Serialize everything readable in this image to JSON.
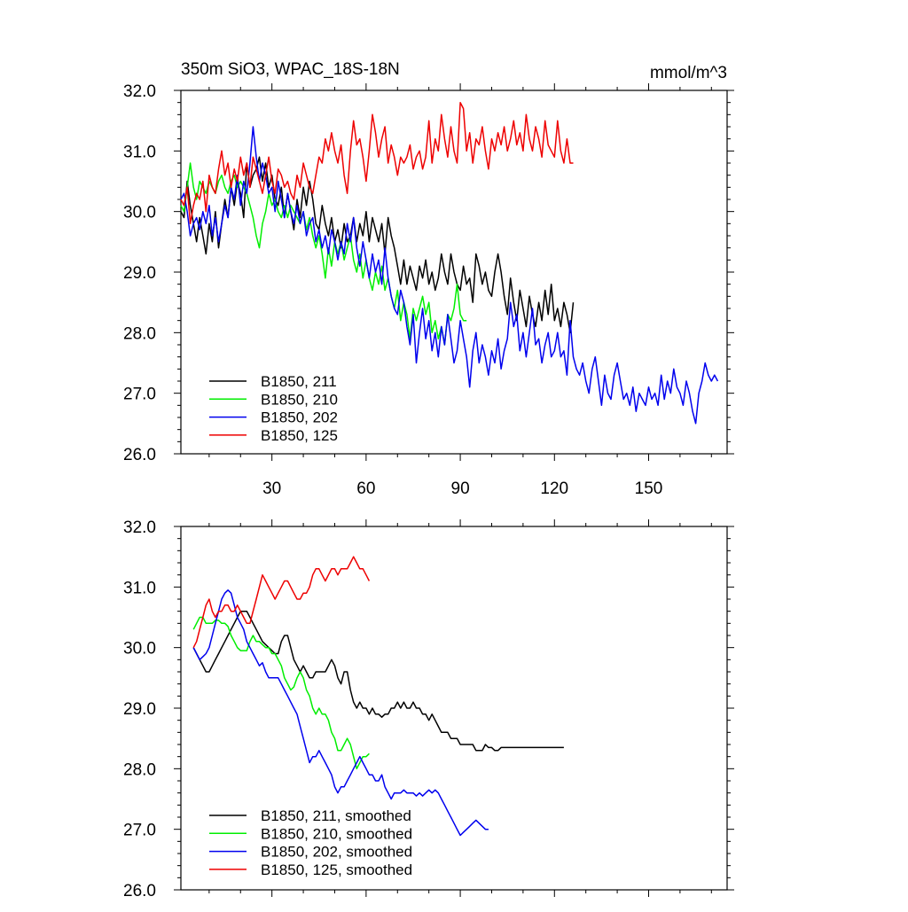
{
  "chart_data": [
    {
      "type": "line",
      "title": "350m SiO3, WPAC_18S-18N",
      "units": "mmol/m^3",
      "xlabel": "",
      "ylabel": "",
      "xlim": [
        1,
        175
      ],
      "ylim": [
        26.0,
        32.0
      ],
      "xticks": [
        30,
        60,
        90,
        120,
        150
      ],
      "xtick_labels": [
        "30",
        "60",
        "90",
        "120",
        "150"
      ],
      "yticks": [
        26.0,
        27.0,
        28.0,
        29.0,
        30.0,
        31.0,
        32.0
      ],
      "ytick_labels": [
        "26.0",
        "27.0",
        "28.0",
        "29.0",
        "30.0",
        "31.0",
        "32.0"
      ],
      "legend_position": "bottom-left",
      "series": [
        {
          "name": "B1850, 211",
          "color": "#000000",
          "start": 1,
          "values": [
            30.0,
            29.9,
            30.5,
            30.1,
            29.8,
            29.5,
            29.9,
            29.6,
            29.3,
            29.8,
            29.5,
            30.0,
            29.4,
            29.8,
            30.2,
            29.9,
            30.4,
            30.1,
            30.5,
            30.3,
            29.9,
            30.8,
            30.4,
            30.6,
            30.7,
            30.9,
            30.5,
            30.8,
            30.4,
            30.6,
            30.2,
            30.1,
            30.4,
            29.9,
            30.3,
            30.0,
            29.7,
            30.2,
            29.9,
            30.4,
            30.1,
            30.5,
            30.2,
            29.8,
            29.7,
            30.1,
            29.8,
            29.6,
            29.9,
            29.5,
            29.7,
            29.4,
            29.8,
            29.5,
            29.6,
            29.9,
            29.5,
            29.8,
            29.6,
            30.0,
            29.5,
            29.9,
            29.7,
            29.5,
            29.8,
            29.3,
            29.9,
            29.6,
            29.4,
            29.1,
            28.8,
            29.2,
            28.8,
            29.1,
            28.9,
            28.7,
            29.1,
            28.9,
            29.2,
            28.8,
            29.0,
            28.7,
            28.9,
            29.3,
            29.0,
            28.8,
            29.3,
            29.0,
            28.8,
            28.7,
            29.1,
            28.8,
            28.9,
            28.5,
            29.3,
            29.1,
            28.8,
            29.0,
            28.7,
            28.6,
            29.0,
            29.3,
            29.0,
            28.6,
            28.3,
            28.9,
            28.5,
            28.2,
            28.7,
            28.4,
            28.1,
            28.6,
            28.3,
            28.1,
            28.5,
            28.2,
            28.7,
            28.3,
            28.8,
            28.2,
            28.4,
            28.1,
            28.5,
            28.3,
            28.0,
            28.5
          ]
        },
        {
          "name": "B1850, 210",
          "color": "#00ee00",
          "start": 1,
          "values": [
            30.1,
            30.0,
            30.4,
            30.8,
            30.4,
            30.2,
            30.5,
            30.4,
            30.3,
            30.5,
            30.4,
            30.3,
            30.5,
            30.6,
            30.4,
            30.3,
            30.5,
            30.6,
            30.4,
            30.5,
            30.4,
            30.3,
            30.1,
            29.9,
            29.6,
            29.4,
            29.8,
            30.0,
            30.3,
            30.1,
            30.2,
            30.0,
            29.9,
            30.1,
            29.9,
            30.1,
            30.0,
            29.9,
            29.8,
            30.0,
            29.7,
            29.9,
            29.6,
            29.4,
            29.6,
            29.3,
            28.9,
            29.4,
            29.1,
            29.5,
            29.3,
            29.5,
            29.2,
            29.4,
            29.6,
            29.2,
            29.0,
            29.3,
            28.9,
            29.2,
            28.9,
            28.7,
            29.0,
            28.8,
            29.1,
            28.7,
            28.9,
            28.6,
            28.4,
            28.7,
            28.2,
            28.5,
            28.3,
            27.9,
            28.4,
            28.2,
            28.4,
            28.6,
            28.3,
            28.5,
            28.0,
            28.2,
            27.9,
            28.1,
            27.8,
            28.3,
            28.2,
            28.4,
            28.8,
            28.3,
            28.2,
            28.2
          ]
        },
        {
          "name": "B1850, 202",
          "color": "#0000ee",
          "start": 1,
          "values": [
            30.2,
            30.3,
            30.0,
            29.6,
            29.8,
            29.9,
            29.7,
            30.0,
            29.8,
            30.1,
            29.6,
            29.9,
            29.5,
            29.8,
            30.1,
            29.9,
            30.4,
            30.2,
            30.6,
            30.1,
            30.5,
            30.3,
            30.8,
            31.4,
            30.9,
            30.5,
            30.8,
            30.6,
            30.3,
            30.4,
            30.0,
            30.5,
            30.2,
            29.9,
            30.3,
            30.0,
            29.8,
            30.1,
            29.8,
            30.0,
            29.6,
            29.8,
            29.9,
            29.5,
            29.7,
            29.4,
            29.6,
            29.3,
            29.7,
            29.5,
            29.2,
            29.5,
            29.3,
            29.8,
            29.5,
            29.9,
            29.4,
            29.1,
            29.5,
            29.2,
            28.9,
            29.3,
            29.0,
            29.2,
            28.8,
            29.4,
            28.9,
            28.6,
            28.4,
            28.3,
            28.7,
            28.5,
            28.1,
            27.8,
            28.3,
            27.5,
            28.0,
            28.4,
            27.9,
            28.2,
            27.7,
            28.0,
            27.6,
            28.1,
            27.8,
            28.3,
            27.9,
            27.5,
            27.7,
            28.2,
            27.9,
            27.6,
            27.1,
            27.7,
            28.0,
            27.5,
            27.8,
            27.6,
            27.3,
            27.7,
            27.5,
            27.9,
            27.4,
            27.7,
            27.9,
            28.5,
            28.1,
            28.3,
            27.7,
            28.0,
            27.6,
            28.0,
            28.4,
            27.8,
            27.9,
            27.5,
            27.8,
            28.0,
            27.6,
            27.7,
            28.0,
            27.6,
            27.7,
            27.3,
            28.2,
            27.6,
            27.4,
            27.3,
            27.5,
            27.2,
            27.0,
            27.4,
            27.6,
            27.2,
            26.8,
            27.3,
            27.0,
            26.9,
            27.3,
            27.5,
            27.2,
            26.9,
            27.0,
            26.8,
            27.1,
            26.7,
            27.0,
            26.9,
            26.8,
            27.1,
            26.9,
            27.0,
            26.8,
            27.3,
            26.9,
            27.2,
            27.0,
            27.4,
            27.1,
            27.0,
            26.8,
            27.2,
            27.0,
            26.7,
            26.5,
            27.0,
            27.2,
            27.5,
            27.3,
            27.2,
            27.3,
            27.2
          ]
        },
        {
          "name": "B1850, 125",
          "color": "#ee0000",
          "start": 1,
          "values": [
            30.2,
            30.1,
            30.4,
            29.8,
            30.1,
            30.3,
            30.2,
            30.5,
            30.0,
            30.6,
            30.4,
            30.3,
            30.7,
            31.0,
            30.6,
            30.8,
            30.4,
            30.7,
            30.5,
            30.9,
            30.6,
            30.8,
            30.4,
            30.9,
            30.7,
            30.5,
            30.3,
            30.6,
            30.9,
            30.5,
            30.3,
            30.7,
            30.6,
            30.4,
            30.5,
            30.3,
            30.2,
            30.6,
            30.4,
            30.8,
            30.6,
            30.4,
            30.3,
            30.6,
            30.9,
            30.8,
            31.2,
            31.0,
            31.3,
            31.0,
            30.8,
            31.1,
            30.6,
            30.3,
            31.0,
            31.5,
            31.1,
            31.2,
            30.9,
            30.5,
            31.0,
            31.6,
            31.3,
            30.9,
            31.2,
            31.4,
            30.8,
            31.1,
            30.9,
            30.6,
            30.9,
            30.8,
            30.9,
            31.1,
            30.7,
            30.9,
            31.0,
            30.7,
            30.9,
            31.5,
            30.8,
            31.2,
            31.0,
            31.6,
            31.2,
            30.9,
            31.4,
            31.0,
            30.8,
            31.8,
            31.7,
            31.0,
            31.3,
            30.8,
            31.2,
            31.1,
            31.4,
            31.0,
            30.7,
            31.2,
            31.0,
            31.3,
            31.1,
            31.4,
            31.0,
            31.2,
            31.5,
            31.1,
            31.3,
            31.0,
            31.6,
            31.2,
            31.0,
            31.4,
            31.2,
            30.9,
            31.5,
            31.1,
            31.0,
            30.9,
            31.5,
            31.0,
            30.8,
            31.2,
            30.8,
            30.8
          ]
        }
      ],
      "legend": [
        "B1850, 211",
        "B1850, 210",
        "B1850, 202",
        "B1850, 125"
      ]
    },
    {
      "type": "line",
      "title": "",
      "xlabel": "",
      "ylabel": "",
      "xlim": [
        1,
        175
      ],
      "ylim": [
        26.0,
        32.0
      ],
      "xticks": [
        30,
        60,
        90,
        120,
        150
      ],
      "yticks": [
        26.0,
        27.0,
        28.0,
        29.0,
        30.0,
        31.0,
        32.0
      ],
      "ytick_labels": [
        "26.0",
        "27.0",
        "28.0",
        "29.0",
        "30.0",
        "31.0",
        "32.0"
      ],
      "legend_position": "bottom-left",
      "series": [
        {
          "name": "B1850, 211, smoothed",
          "color": "#000000",
          "start": 5,
          "values": [
            30.0,
            29.9,
            29.8,
            29.7,
            29.6,
            29.6,
            29.7,
            29.8,
            29.9,
            30.0,
            30.1,
            30.2,
            30.3,
            30.4,
            30.5,
            30.6,
            30.6,
            30.6,
            30.5,
            30.4,
            30.3,
            30.2,
            30.1,
            30.05,
            30.0,
            29.95,
            29.9,
            29.9,
            30.1,
            30.2,
            30.2,
            30.0,
            29.8,
            29.7,
            29.6,
            29.7,
            29.6,
            29.5,
            29.5,
            29.6,
            29.6,
            29.6,
            29.6,
            29.7,
            29.8,
            29.7,
            29.5,
            29.4,
            29.6,
            29.6,
            29.3,
            29.1,
            29.0,
            29.1,
            29.0,
            29.0,
            28.9,
            29.0,
            28.9,
            28.9,
            28.85,
            28.9,
            28.9,
            29.0,
            29.0,
            29.1,
            29.0,
            29.1,
            29.0,
            29.0,
            29.1,
            29.0,
            29.0,
            28.9,
            28.9,
            28.8,
            28.9,
            28.8,
            28.7,
            28.6,
            28.6,
            28.6,
            28.5,
            28.5,
            28.5,
            28.4,
            28.4,
            28.4,
            28.4,
            28.4,
            28.3,
            28.3,
            28.3,
            28.4,
            28.35,
            28.35,
            28.3,
            28.3,
            28.35,
            28.35,
            28.35,
            28.35,
            28.35,
            28.35,
            28.35,
            28.35,
            28.35,
            28.35,
            28.35,
            28.35,
            28.35,
            28.35,
            28.35,
            28.35,
            28.35,
            28.35,
            28.35,
            28.35,
            28.35
          ]
        },
        {
          "name": "B1850, 210, smoothed",
          "color": "#00ee00",
          "start": 5,
          "values": [
            30.3,
            30.4,
            30.5,
            30.5,
            30.4,
            30.4,
            30.4,
            30.45,
            30.45,
            30.4,
            30.4,
            30.35,
            30.2,
            30.1,
            30.0,
            29.95,
            29.95,
            29.95,
            30.1,
            30.2,
            30.1,
            30.1,
            30.05,
            30.0,
            30.0,
            29.9,
            29.9,
            29.8,
            29.7,
            29.5,
            29.4,
            29.3,
            29.35,
            29.5,
            29.6,
            29.5,
            29.3,
            29.2,
            29.0,
            28.9,
            29.0,
            28.9,
            28.9,
            28.8,
            28.6,
            28.5,
            28.3,
            28.3,
            28.4,
            28.5,
            28.4,
            28.2,
            28.0,
            28.1,
            28.2,
            28.2,
            28.25
          ]
        },
        {
          "name": "B1850, 202, smoothed",
          "color": "#0000ee",
          "start": 5,
          "values": [
            30.0,
            29.9,
            29.8,
            29.85,
            29.9,
            30.0,
            30.2,
            30.4,
            30.6,
            30.8,
            30.9,
            30.95,
            30.9,
            30.7,
            30.5,
            30.4,
            30.3,
            30.1,
            30.0,
            29.9,
            29.8,
            29.7,
            29.75,
            29.6,
            29.5,
            29.5,
            29.5,
            29.5,
            29.4,
            29.3,
            29.2,
            29.1,
            29.0,
            28.9,
            28.7,
            28.5,
            28.3,
            28.1,
            28.2,
            28.2,
            28.3,
            28.2,
            28.1,
            28.0,
            27.9,
            27.7,
            27.6,
            27.7,
            27.7,
            27.8,
            27.9,
            28.0,
            28.1,
            28.2,
            28.1,
            28.0,
            27.9,
            27.9,
            27.8,
            27.8,
            27.9,
            27.7,
            27.6,
            27.5,
            27.6,
            27.6,
            27.6,
            27.65,
            27.6,
            27.6,
            27.6,
            27.55,
            27.6,
            27.55,
            27.6,
            27.65,
            27.6,
            27.65,
            27.6,
            27.5,
            27.4,
            27.3,
            27.2,
            27.1,
            27.0,
            26.9,
            26.95,
            27.0,
            27.05,
            27.1,
            27.15,
            27.1,
            27.05,
            27.0,
            27.0
          ]
        },
        {
          "name": "B1850, 125, smoothed",
          "color": "#ee0000",
          "start": 5,
          "values": [
            30.0,
            30.1,
            30.3,
            30.5,
            30.7,
            30.8,
            30.6,
            30.5,
            30.6,
            30.6,
            30.7,
            30.7,
            30.6,
            30.6,
            30.7,
            30.6,
            30.5,
            30.4,
            30.4,
            30.6,
            30.8,
            31.0,
            31.2,
            31.1,
            31.0,
            30.9,
            30.8,
            30.9,
            31.0,
            31.1,
            31.1,
            31.0,
            30.9,
            30.8,
            30.8,
            30.9,
            30.9,
            31.0,
            31.2,
            31.3,
            31.3,
            31.2,
            31.1,
            31.2,
            31.3,
            31.3,
            31.2,
            31.3,
            31.3,
            31.3,
            31.4,
            31.5,
            31.4,
            31.3,
            31.3,
            31.2,
            31.1
          ]
        }
      ],
      "legend": [
        "B1850, 211, smoothed",
        "B1850, 210, smoothed",
        "B1850, 202, smoothed",
        "B1850, 125, smoothed"
      ]
    }
  ]
}
